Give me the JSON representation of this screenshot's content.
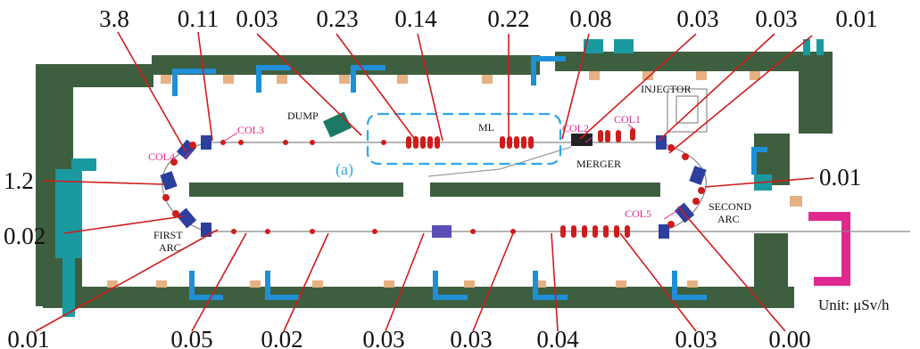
{
  "dose_readings": {
    "top": [
      "3.8",
      "0.11",
      "0.03",
      "0.23",
      "0.14",
      "0.22",
      "0.08",
      "0.03",
      "0.03",
      "0.01"
    ],
    "left": [
      "1.2",
      "0.02"
    ],
    "right": [
      "0.01"
    ],
    "bottom": [
      "0.01",
      "0.05",
      "0.02",
      "0.03",
      "0.03",
      "0.04",
      "0.03",
      "0.00"
    ]
  },
  "unit_label": "Unit: μSv/h",
  "area_labels": {
    "dump": "DUMP",
    "ml": "ML",
    "injector": "INJECTOR",
    "merger": "MERGER",
    "first_arc_1": "FIRST",
    "first_arc_2": "ARC",
    "second_arc_1": "SECOND",
    "second_arc_2": "ARC",
    "region_a": "(a)"
  },
  "collimators": [
    "COL1",
    "COL2",
    "COL3",
    "COL4",
    "COL5"
  ],
  "colors": {
    "shield_wall": "#3e5f3f",
    "wall_stripe": "#e6b183",
    "pointer_line": "#d11b1b",
    "collimator_label": "#e0288f",
    "region_outline": "#2fa6e6",
    "beamline_magnet": "#d11b1b",
    "arc_magnet": "#2c3f9e",
    "access_wall": "#e0288f",
    "cooling_blocks": "#1a9aa0"
  }
}
